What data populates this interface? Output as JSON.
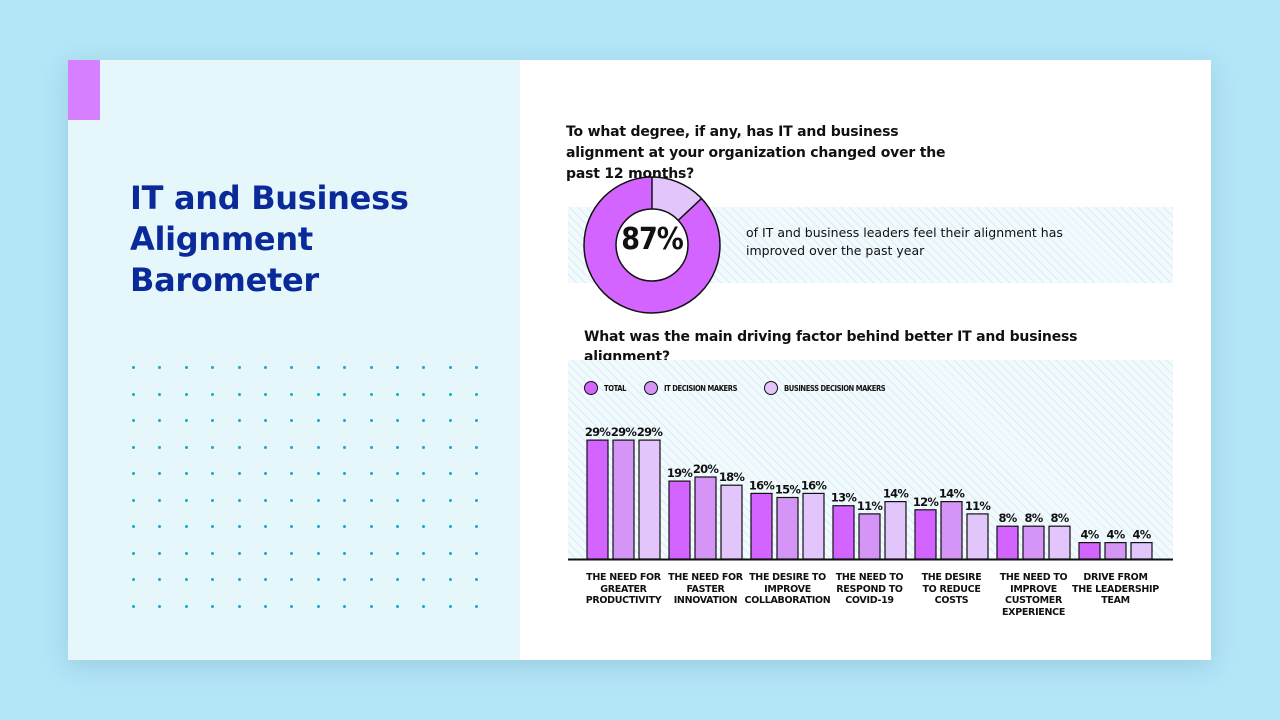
{
  "colors": {
    "background": "#b3e6f7",
    "left_panel": "#e6f7fc",
    "title": "#0b2a9a",
    "accent": "#d680ff",
    "dot": "#1ba9cf",
    "total": "#d364ff",
    "it": "#d595f7",
    "business": "#e2c5fb"
  },
  "title": "IT and Business Alignment Barometer",
  "question1": "To what degree, if any, has IT and business alignment at your organization changed over the past 12 months?",
  "donut": {
    "value": 87,
    "label": "87%",
    "caption": "of IT and business leaders feel their alignment has improved over the past year"
  },
  "question2": "What was the main driving factor behind better IT and business alignment?",
  "legend": [
    {
      "name": "TOTAL",
      "color_key": "total"
    },
    {
      "name": "IT DECISION MAKERS",
      "color_key": "it"
    },
    {
      "name": "BUSINESS DECISION MAKERS",
      "color_key": "business"
    }
  ],
  "chart_data": {
    "type": "bar",
    "title": "What was the main driving factor behind better IT and business alignment?",
    "xlabel": "",
    "ylabel": "",
    "ylim": [
      0,
      30
    ],
    "grid": false,
    "legend_position": "top-left",
    "categories": [
      "THE NEED FOR GREATER PRODUCTIVITY",
      "THE NEED FOR FASTER INNOVATION",
      "THE DESIRE TO IMPROVE COLLABORATION",
      "THE NEED TO RESPOND TO COVID-19",
      "THE DESIRE TO REDUCE COSTS",
      "THE NEED TO IMPROVE CUSTOMER EXPERIENCE",
      "DRIVE FROM THE LEADERSHIP TEAM"
    ],
    "category_lines": [
      [
        "THE NEED FOR",
        "GREATER",
        "PRODUCTIVITY"
      ],
      [
        "THE NEED FOR",
        "FASTER",
        "INNOVATION"
      ],
      [
        "THE DESIRE TO",
        "IMPROVE",
        "COLLABORATION"
      ],
      [
        "THE NEED TO",
        "RESPOND TO",
        "COVID-19"
      ],
      [
        "THE DESIRE",
        "TO REDUCE",
        "COSTS"
      ],
      [
        "THE NEED TO",
        "IMPROVE",
        "CUSTOMER",
        "EXPERIENCE"
      ],
      [
        "DRIVE FROM",
        "THE LEADERSHIP",
        "TEAM"
      ]
    ],
    "series": [
      {
        "name": "TOTAL",
        "values": [
          29,
          19,
          16,
          13,
          12,
          8,
          4
        ]
      },
      {
        "name": "IT DECISION MAKERS",
        "values": [
          29,
          20,
          15,
          11,
          14,
          8,
          4
        ]
      },
      {
        "name": "BUSINESS DECISION MAKERS",
        "values": [
          29,
          18,
          16,
          14,
          11,
          8,
          4
        ]
      }
    ],
    "value_suffix": "%"
  }
}
